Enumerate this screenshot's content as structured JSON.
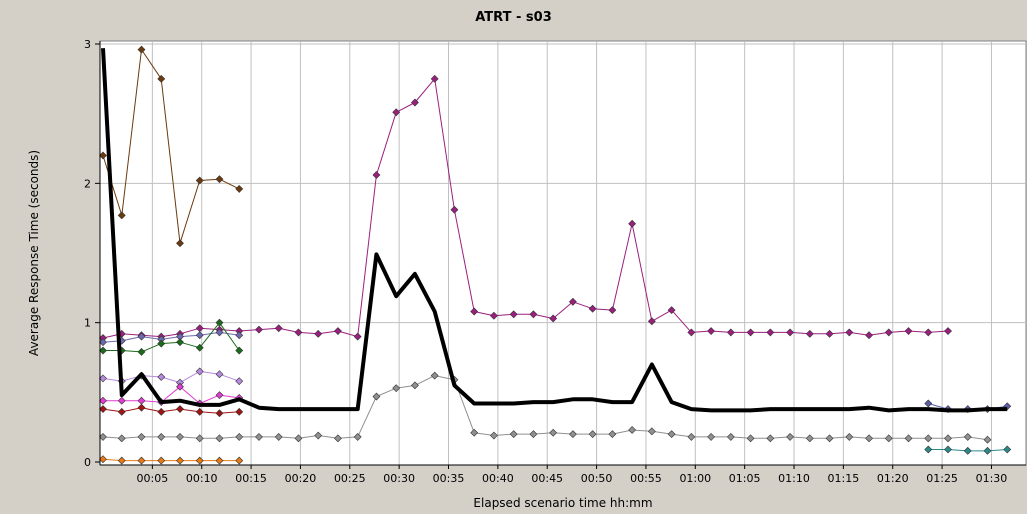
{
  "chart_data": {
    "type": "line",
    "title": "ATRT - s03",
    "xlabel": "Elapsed scenario time hh:mm",
    "ylabel": "Average Response Time (seconds)",
    "x_unit": "minutes",
    "xlim": [
      0,
      93.5
    ],
    "ylim": [
      0,
      3
    ],
    "y_ticks": [
      0,
      1,
      2,
      3
    ],
    "x_ticks": [
      {
        "label": "00:05",
        "value": 5
      },
      {
        "label": "00:10",
        "value": 10
      },
      {
        "label": "00:15",
        "value": 15
      },
      {
        "label": "00:20",
        "value": 20
      },
      {
        "label": "00:25",
        "value": 25
      },
      {
        "label": "00:30",
        "value": 30
      },
      {
        "label": "00:35",
        "value": 35
      },
      {
        "label": "00:40",
        "value": 40
      },
      {
        "label": "00:45",
        "value": 45
      },
      {
        "label": "00:50",
        "value": 50
      },
      {
        "label": "00:55",
        "value": 55
      },
      {
        "label": "01:00",
        "value": 60
      },
      {
        "label": "01:05",
        "value": 65
      },
      {
        "label": "01:10",
        "value": 70
      },
      {
        "label": "01:15",
        "value": 75
      },
      {
        "label": "01:20",
        "value": 80
      },
      {
        "label": "01:25",
        "value": 85
      },
      {
        "label": "01:30",
        "value": 90
      }
    ],
    "grid": true,
    "series": [
      {
        "color": "#6b3a0e",
        "line_width": 1,
        "markers": true,
        "x": [
          0,
          1.9,
          3.9,
          5.9,
          7.8,
          9.8,
          11.8,
          13.8
        ],
        "y": [
          2.2,
          1.77,
          2.96,
          2.75,
          1.57,
          2.02,
          2.03,
          1.96
        ]
      },
      {
        "color": "#9b1f7e",
        "line_width": 1,
        "markers": true,
        "x": [
          0,
          1.9,
          3.9,
          5.9,
          7.8,
          9.8,
          11.8,
          13.8,
          15.8,
          17.8,
          19.8,
          21.8,
          23.8,
          25.8,
          27.7,
          29.7,
          31.6,
          33.6,
          35.6,
          37.6,
          39.6,
          41.6,
          43.6,
          45.6,
          47.6,
          49.6,
          51.6,
          53.6,
          55.6,
          57.6,
          59.6,
          61.6,
          63.6,
          65.6,
          67.6,
          69.6,
          71.6,
          73.6,
          75.6,
          77.6,
          79.6,
          81.6,
          83.6,
          85.6,
          87.6,
          89.6
        ],
        "y": [
          0.89,
          0.92,
          0.91,
          0.9,
          0.92,
          0.96,
          0.95,
          0.94,
          0.95,
          0.96,
          0.93,
          0.92,
          0.94,
          0.9,
          2.06,
          2.51,
          2.58,
          2.75,
          1.81,
          1.08,
          1.05,
          1.06,
          1.06,
          1.03,
          1.15,
          1.1,
          1.09,
          1.71,
          1.01,
          1.09,
          0.93,
          0.94,
          0.93,
          0.93,
          0.93,
          0.93,
          0.92,
          0.92,
          0.93,
          0.91,
          0.93,
          0.94,
          0.93,
          0.94,
          null,
          null
        ]
      },
      {
        "color": "#6e6ab0",
        "line_width": 1,
        "markers": true,
        "x": [
          0,
          1.9,
          3.9,
          5.9,
          7.8,
          9.8,
          11.8,
          13.8
        ],
        "y": [
          0.86,
          0.87,
          0.9,
          0.88,
          0.9,
          0.91,
          0.93,
          0.91
        ]
      },
      {
        "color": "#1a6b1a",
        "line_width": 1,
        "markers": true,
        "x": [
          0,
          1.9,
          3.9,
          5.9,
          7.8,
          9.8,
          11.8,
          13.8
        ],
        "y": [
          0.8,
          0.8,
          0.79,
          0.85,
          0.86,
          0.82,
          1.0,
          0.8
        ]
      },
      {
        "color": "#b58adf",
        "line_width": 1,
        "markers": true,
        "x": [
          0,
          1.9,
          3.9,
          5.9,
          7.8,
          9.8,
          11.8,
          13.8
        ],
        "y": [
          0.6,
          0.58,
          0.62,
          0.61,
          0.57,
          0.65,
          0.63,
          0.58
        ]
      },
      {
        "color": "#e23cd2",
        "line_width": 1,
        "markers": true,
        "x": [
          0,
          1.9,
          3.9,
          5.9,
          7.8,
          9.8,
          11.8,
          13.8
        ],
        "y": [
          0.44,
          0.44,
          0.44,
          0.43,
          0.54,
          0.42,
          0.48,
          0.46
        ]
      },
      {
        "color": "#a01414",
        "line_width": 1,
        "markers": true,
        "x": [
          0,
          1.9,
          3.9,
          5.9,
          7.8,
          9.8,
          11.8,
          13.8
        ],
        "y": [
          0.38,
          0.36,
          0.39,
          0.36,
          0.38,
          0.36,
          0.35,
          0.36
        ]
      },
      {
        "color": "#909090",
        "line_width": 1,
        "markers": true,
        "x": [
          0,
          1.9,
          3.9,
          5.9,
          7.8,
          9.8,
          11.8,
          13.8,
          15.8,
          17.8,
          19.8,
          21.8,
          23.8,
          25.8,
          27.7,
          29.7,
          31.6,
          33.6,
          35.6,
          37.6,
          39.6,
          41.6,
          43.6,
          45.6,
          47.6,
          49.6,
          51.6,
          53.6,
          55.6,
          57.6,
          59.6,
          61.6,
          63.6,
          65.6,
          67.6,
          69.6,
          71.6,
          73.6,
          75.6,
          77.6,
          79.6,
          81.6,
          83.6,
          85.6,
          87.6,
          89.6
        ],
        "y": [
          0.18,
          0.17,
          0.18,
          0.18,
          0.18,
          0.17,
          0.17,
          0.18,
          0.18,
          0.18,
          0.17,
          0.19,
          0.17,
          0.18,
          0.47,
          0.53,
          0.55,
          0.62,
          0.59,
          0.21,
          0.19,
          0.2,
          0.2,
          0.21,
          0.2,
          0.2,
          0.2,
          0.23,
          0.22,
          0.2,
          0.18,
          0.18,
          0.18,
          0.17,
          0.17,
          0.18,
          0.17,
          0.17,
          0.18,
          0.17,
          0.17,
          0.17,
          0.17,
          0.17,
          0.18,
          0.16
        ]
      },
      {
        "color": "#e87a14",
        "line_width": 1,
        "markers": true,
        "x": [
          0,
          1.9,
          3.9,
          5.9,
          7.8,
          9.8,
          11.8,
          13.8
        ],
        "y": [
          0.02,
          0.01,
          0.01,
          0.01,
          0.01,
          0.01,
          0.01,
          0.01
        ]
      },
      {
        "color": "#2a8a8a",
        "line_width": 1,
        "markers": true,
        "x": [
          83.6,
          85.6,
          87.6,
          89.6,
          91.6
        ],
        "y": [
          0.09,
          0.09,
          0.08,
          0.08,
          0.09
        ]
      },
      {
        "color": "#5b5fa8",
        "line_width": 1,
        "markers": true,
        "x": [
          83.6,
          85.6,
          87.6,
          89.6,
          91.6
        ],
        "y": [
          0.42,
          0.38,
          0.38,
          0.38,
          0.4
        ]
      },
      {
        "color": "#000000",
        "line_width": 4,
        "markers": false,
        "x": [
          0,
          1.9,
          3.9,
          5.9,
          7.8,
          9.8,
          11.8,
          13.8,
          15.8,
          17.8,
          19.8,
          21.8,
          23.8,
          25.8,
          27.7,
          29.7,
          31.6,
          33.6,
          35.6,
          37.6,
          39.6,
          41.6,
          43.6,
          45.6,
          47.6,
          49.6,
          51.6,
          53.6,
          55.6,
          57.6,
          59.6,
          61.6,
          63.6,
          65.6,
          67.6,
          69.6,
          71.6,
          73.6,
          75.6,
          77.6,
          79.6,
          81.6,
          83.6,
          85.6,
          87.6,
          89.6,
          91.6
        ],
        "y": [
          2.97,
          0.48,
          0.63,
          0.43,
          0.44,
          0.41,
          0.41,
          0.45,
          0.39,
          0.38,
          0.38,
          0.38,
          0.38,
          0.38,
          1.49,
          1.19,
          1.35,
          1.08,
          0.55,
          0.42,
          0.42,
          0.42,
          0.43,
          0.43,
          0.45,
          0.45,
          0.43,
          0.43,
          0.7,
          0.43,
          0.38,
          0.37,
          0.37,
          0.37,
          0.38,
          0.38,
          0.38,
          0.38,
          0.38,
          0.39,
          0.37,
          0.38,
          0.38,
          0.37,
          0.37,
          0.38,
          0.38
        ]
      }
    ]
  }
}
